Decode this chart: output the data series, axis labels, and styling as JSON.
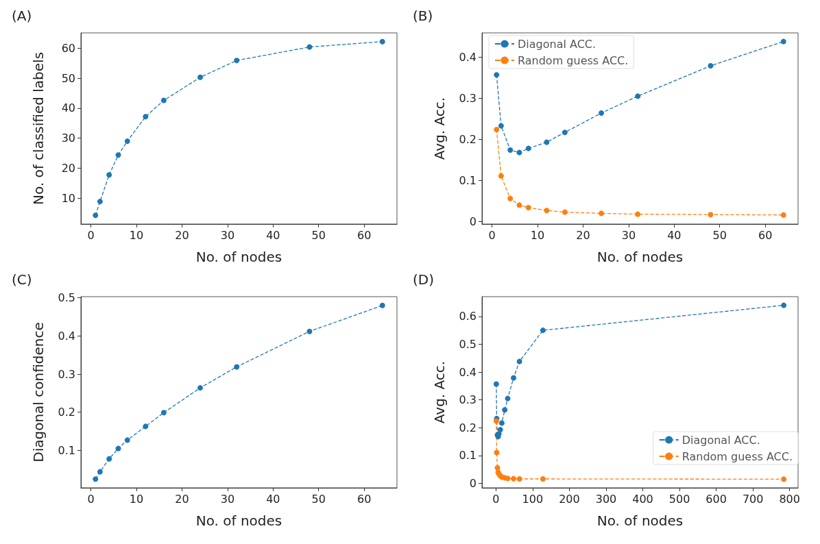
{
  "chart_data": [
    {
      "type": "line",
      "title": "(A)",
      "xlabel": "No. of nodes",
      "ylabel": "No. of classified labels",
      "x": [
        1,
        2,
        4,
        6,
        8,
        12,
        16,
        24,
        32,
        48,
        64
      ],
      "xlim": [
        -2.2,
        67.2
      ],
      "xticks": [
        0,
        10,
        20,
        30,
        40,
        50,
        60
      ],
      "ylim": [
        1.4,
        65.1
      ],
      "yticks": [
        10,
        20,
        30,
        40,
        50,
        60
      ],
      "marker": "circle",
      "line_style": "dashed",
      "grid": false,
      "legend": false,
      "series": [
        {
          "color": "#1f77b4",
          "values": [
            4.3,
            8.9,
            17.8,
            24.4,
            29.0,
            37.2,
            42.6,
            50.3,
            55.9,
            60.4,
            62.2
          ]
        }
      ]
    },
    {
      "type": "line",
      "title": "(B)",
      "xlabel": "No. of nodes",
      "ylabel": "Avg. Acc.",
      "x": [
        1,
        2,
        4,
        6,
        8,
        12,
        16,
        24,
        32,
        48,
        64
      ],
      "xlim": [
        -2.2,
        67.2
      ],
      "xticks": [
        0,
        10,
        20,
        30,
        40,
        50,
        60
      ],
      "ylim": [
        -0.006,
        0.459
      ],
      "yticks": [
        0,
        0.1,
        0.2,
        0.3,
        0.4
      ],
      "marker": "circle",
      "line_style": "dashed",
      "grid": false,
      "legend": "top left",
      "series": [
        {
          "name": "Diagonal ACC.",
          "color": "#1f77b4",
          "values": [
            0.357,
            0.233,
            0.174,
            0.168,
            0.178,
            0.193,
            0.217,
            0.264,
            0.305,
            0.379,
            0.438
          ]
        },
        {
          "name": "Random guess ACC.",
          "color": "#ff7f0e",
          "values": [
            0.224,
            0.111,
            0.056,
            0.04,
            0.034,
            0.027,
            0.023,
            0.02,
            0.018,
            0.017,
            0.016
          ]
        }
      ]
    },
    {
      "type": "line",
      "title": "(C)",
      "xlabel": "No. of nodes",
      "ylabel": "Diagonal confidence",
      "x": [
        1,
        2,
        4,
        6,
        8,
        12,
        16,
        24,
        32,
        48,
        64
      ],
      "xlim": [
        -2.2,
        67.2
      ],
      "xticks": [
        0,
        10,
        20,
        30,
        40,
        50,
        60
      ],
      "ylim": [
        0.002,
        0.503
      ],
      "yticks": [
        0.1,
        0.2,
        0.3,
        0.4,
        0.5
      ],
      "marker": "circle",
      "line_style": "dashed",
      "grid": false,
      "legend": false,
      "series": [
        {
          "color": "#1f77b4",
          "values": [
            0.025,
            0.044,
            0.078,
            0.105,
            0.127,
            0.163,
            0.199,
            0.264,
            0.319,
            0.412,
            0.48
          ]
        }
      ]
    },
    {
      "type": "line",
      "title": "(D)",
      "xlabel": "No. of nodes",
      "ylabel": "Avg. Acc.",
      "x": [
        1,
        2,
        4,
        6,
        8,
        12,
        16,
        24,
        32,
        48,
        64,
        128,
        784
      ],
      "xlim": [
        -38,
        823
      ],
      "xticks": [
        0,
        100,
        200,
        300,
        400,
        500,
        600,
        700,
        800
      ],
      "ylim": [
        -0.016,
        0.671
      ],
      "yticks": [
        0,
        0.1,
        0.2,
        0.3,
        0.4,
        0.5,
        0.6
      ],
      "marker": "circle",
      "line_style": "dashed",
      "grid": false,
      "legend": "bottom right",
      "series": [
        {
          "name": "Diagonal ACC.",
          "color": "#1f77b4",
          "values": [
            0.357,
            0.233,
            0.174,
            0.168,
            0.178,
            0.193,
            0.217,
            0.264,
            0.305,
            0.379,
            0.438,
            0.55,
            0.64
          ]
        },
        {
          "name": "Random guess ACC.",
          "color": "#ff7f0e",
          "values": [
            0.224,
            0.111,
            0.056,
            0.04,
            0.034,
            0.027,
            0.023,
            0.02,
            0.018,
            0.017,
            0.016,
            0.016,
            0.015
          ]
        }
      ]
    }
  ]
}
